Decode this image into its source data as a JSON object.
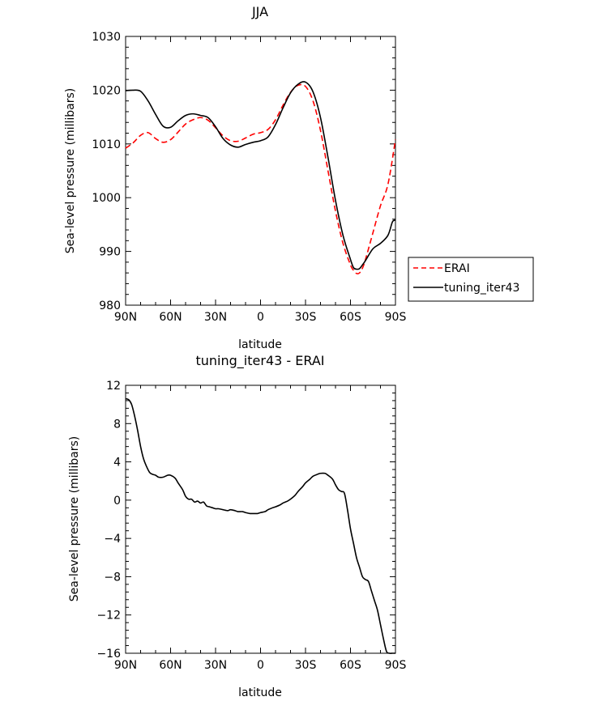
{
  "chart_data": [
    {
      "type": "line",
      "title": "JJA",
      "xlabel": "latitude",
      "ylabel": "Sea-level pressure (millibars)",
      "xlim": [
        90,
        -90
      ],
      "ylim": [
        980,
        1030
      ],
      "x_ticks": [
        90,
        60,
        30,
        0,
        -30,
        -60,
        -90
      ],
      "x_tick_labels": [
        "90N",
        "60N",
        "30N",
        "0",
        "30S",
        "60S",
        "90S"
      ],
      "y_ticks": [
        980,
        990,
        1000,
        1010,
        1020,
        1030
      ],
      "y_tick_labels": [
        "980",
        "990",
        "1000",
        "1010",
        "1020",
        "1030"
      ],
      "legend": {
        "position": "right",
        "entries": [
          "ERAI",
          "tuning_iter43"
        ]
      },
      "series": [
        {
          "name": "ERAI",
          "color": "#ff0000",
          "dash": "dashed",
          "x": [
            90,
            85,
            80,
            75,
            70,
            65,
            60,
            55,
            50,
            45,
            40,
            35,
            30,
            25,
            20,
            15,
            10,
            5,
            0,
            -5,
            -10,
            -15,
            -20,
            -25,
            -30,
            -35,
            -40,
            -45,
            -50,
            -55,
            -60,
            -62,
            -64,
            -66,
            -68,
            -70,
            -75,
            -80,
            -85,
            -90
          ],
          "y": [
            1009.2,
            1010.2,
            1011.6,
            1012.1,
            1011.0,
            1010.3,
            1010.8,
            1012.2,
            1013.7,
            1014.5,
            1014.9,
            1014.4,
            1013.0,
            1011.5,
            1010.6,
            1010.5,
            1011.1,
            1011.8,
            1012.1,
            1012.7,
            1014.5,
            1017.2,
            1019.6,
            1020.9,
            1020.7,
            1018.0,
            1012.5,
            1005.0,
            997.5,
            991.5,
            987.5,
            986.5,
            985.9,
            986.0,
            986.9,
            988.5,
            993.5,
            998.5,
            1002.5,
            1010.8
          ]
        },
        {
          "name": "tuning_iter43",
          "color": "#000000",
          "dash": "solid",
          "x": [
            90,
            85,
            80,
            75,
            70,
            65,
            60,
            55,
            50,
            45,
            40,
            35,
            30,
            25,
            20,
            15,
            10,
            5,
            0,
            -5,
            -10,
            -15,
            -20,
            -25,
            -30,
            -35,
            -40,
            -45,
            -50,
            -55,
            -60,
            -62,
            -64,
            -66,
            -68,
            -70,
            -75,
            -80,
            -85,
            -88,
            -90
          ],
          "y": [
            1019.9,
            1020.0,
            1019.8,
            1018.0,
            1015.5,
            1013.3,
            1013.1,
            1014.3,
            1015.3,
            1015.6,
            1015.3,
            1014.9,
            1013.2,
            1011.0,
            1009.8,
            1009.4,
            1009.9,
            1010.3,
            1010.6,
            1011.3,
            1013.6,
            1016.7,
            1019.5,
            1021.1,
            1021.5,
            1019.7,
            1014.9,
            1007.5,
            999.5,
            993.0,
            988.5,
            987.0,
            986.7,
            986.8,
            987.5,
            988.3,
            990.5,
            991.5,
            993.0,
            995.5,
            995.8
          ]
        }
      ]
    },
    {
      "type": "line",
      "title": "tuning_iter43 - ERAI",
      "xlabel": "latitude",
      "ylabel": "Sea-level pressure (millibars)",
      "xlim": [
        90,
        -90
      ],
      "ylim": [
        -16,
        12
      ],
      "x_ticks": [
        90,
        60,
        30,
        0,
        -30,
        -60,
        -90
      ],
      "x_tick_labels": [
        "90N",
        "60N",
        "30N",
        "0",
        "30S",
        "60S",
        "90S"
      ],
      "y_ticks": [
        -16,
        -12,
        -8,
        -4,
        0,
        4,
        8,
        12
      ],
      "y_tick_labels": [
        "-16",
        "-12",
        "-8",
        "-4",
        "0",
        "4",
        "8",
        "12"
      ],
      "series": [
        {
          "color": "#000000",
          "dash": "solid",
          "x": [
            90,
            88,
            86,
            84,
            82,
            80,
            78,
            76,
            74,
            72,
            70,
            68,
            65,
            62,
            60,
            57,
            55,
            52,
            50,
            48,
            46,
            44,
            42,
            40,
            38,
            36,
            34,
            32,
            30,
            28,
            25,
            22,
            20,
            17,
            15,
            12,
            10,
            7,
            5,
            2,
            0,
            -3,
            -5,
            -8,
            -10,
            -13,
            -15,
            -18,
            -20,
            -23,
            -25,
            -28,
            -30,
            -33,
            -35,
            -38,
            -40,
            -43,
            -45,
            -48,
            -50,
            -52,
            -54,
            -56,
            -58,
            -60,
            -62,
            -64,
            -66,
            -68,
            -70,
            -72,
            -74,
            -76,
            -78,
            -80,
            -82,
            -84,
            -86,
            -88,
            -90
          ],
          "y": [
            10.6,
            10.5,
            10.0,
            8.8,
            7.3,
            5.6,
            4.3,
            3.5,
            2.9,
            2.7,
            2.6,
            2.4,
            2.4,
            2.6,
            2.6,
            2.3,
            1.8,
            1.1,
            0.4,
            0.1,
            0.1,
            -0.2,
            -0.1,
            -0.3,
            -0.2,
            -0.6,
            -0.7,
            -0.8,
            -0.9,
            -0.9,
            -1.0,
            -1.1,
            -1.0,
            -1.1,
            -1.2,
            -1.2,
            -1.3,
            -1.4,
            -1.4,
            -1.4,
            -1.3,
            -1.2,
            -1.0,
            -0.8,
            -0.7,
            -0.5,
            -0.3,
            -0.1,
            0.1,
            0.5,
            0.9,
            1.4,
            1.8,
            2.2,
            2.5,
            2.7,
            2.8,
            2.8,
            2.6,
            2.2,
            1.6,
            1.1,
            0.9,
            0.7,
            -1.0,
            -3.0,
            -4.5,
            -6.0,
            -7.0,
            -8.0,
            -8.3,
            -8.5,
            -9.5,
            -10.5,
            -11.5,
            -13.0,
            -14.5,
            -15.8,
            -16.0,
            -16.0,
            -16.0
          ]
        }
      ]
    }
  ]
}
